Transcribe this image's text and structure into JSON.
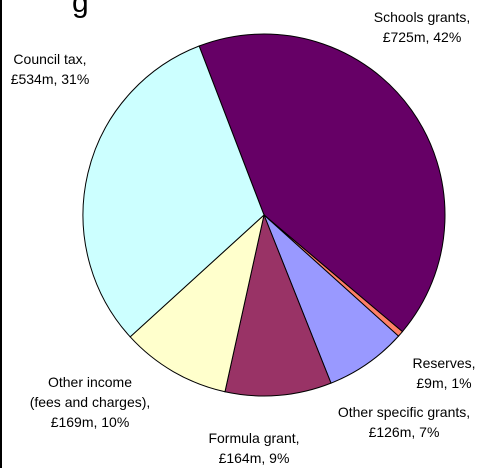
{
  "title_fragment": "g",
  "chart_data": {
    "type": "pie",
    "title": "",
    "unit": "£m",
    "slices": [
      {
        "name": "Schools grants",
        "value": 725,
        "percent": 42,
        "color": "#660066",
        "line1": "Schools grants,",
        "line2": "£725m, 42%"
      },
      {
        "name": "Reserves",
        "value": 9,
        "percent": 1,
        "color": "#FF7F66",
        "line1": "Reserves,",
        "line2": "£9m, 1%"
      },
      {
        "name": "Other specific grants",
        "value": 126,
        "percent": 7,
        "color": "#9999FF",
        "line1": "Other specific grants,",
        "line2": "£126m, 7%"
      },
      {
        "name": "Formula grant",
        "value": 164,
        "percent": 9,
        "color": "#993366",
        "line1": "Formula grant,",
        "line2": "£164m, 9%"
      },
      {
        "name": "Other income (fees and charges)",
        "value": 169,
        "percent": 10,
        "color": "#FFFFCC",
        "line1": "Other income",
        "line2": "(fees and charges),",
        "line3": "£169m, 10%"
      },
      {
        "name": "Council tax",
        "value": 534,
        "percent": 31,
        "color": "#CCFFFF",
        "line1": "Council tax,",
        "line2": "£534m, 31%"
      }
    ]
  }
}
